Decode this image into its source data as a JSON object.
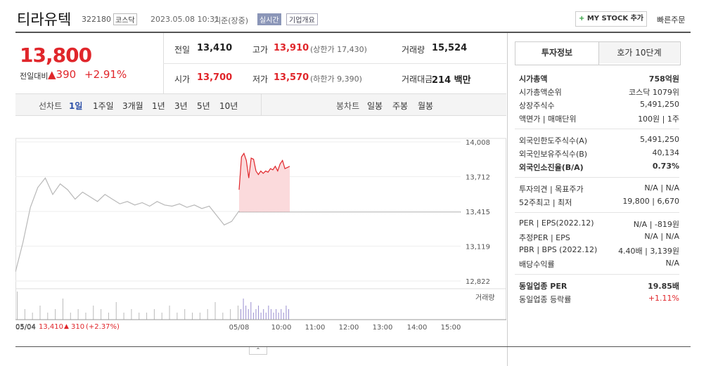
{
  "header": {
    "name": "티라유텍",
    "code": "322180",
    "market": "코스닥",
    "datetime": "2023.05.08 10:31",
    "basis": "기준(장중)",
    "realtime": "실시간",
    "company": "기업개요",
    "mystock": "MY STOCK 추가",
    "quick": "빠른주문"
  },
  "quote": {
    "price": "13,800",
    "change_label": "전일대비",
    "change": "390",
    "rate": "+2.91%"
  },
  "info": [
    {
      "label": "전일",
      "value": "13,410"
    },
    {
      "label": "고가",
      "value": "13,910",
      "note": "(상한가 17,430)"
    },
    {
      "label": "거래량",
      "value": "15,524"
    },
    {
      "label": "시가",
      "value": "13,700"
    },
    {
      "label": "저가",
      "value": "13,570",
      "note": "(하한가 9,390)"
    },
    {
      "label": "거래대금",
      "value": "214 백만"
    }
  ],
  "tabs": {
    "line_label": "선차트",
    "line_tabs": [
      "1일",
      "1주일",
      "3개월",
      "1년",
      "3년",
      "5년",
      "10년"
    ],
    "candle_label": "봉차트",
    "candle_tabs": [
      "일봉",
      "주봉",
      "월봉"
    ]
  },
  "chart": {
    "type": "line",
    "ylim": [
      12762,
      14038
    ],
    "yticks": [
      {
        "value": 14008,
        "label": "14,008"
      },
      {
        "value": 13712,
        "label": "13,712"
      },
      {
        "value": 13415,
        "label": "13,415"
      },
      {
        "value": 13119,
        "label": "13,119"
      },
      {
        "value": 12822,
        "label": "12,822"
      }
    ],
    "prev_close": 13410,
    "series": [
      {
        "color": "#b8b8b8",
        "values": [
          12900,
          13150,
          13450,
          13620,
          13700,
          13560,
          13650,
          13600,
          13520,
          13580,
          13540,
          13500,
          13560,
          13520,
          13480,
          13500,
          13470,
          13490,
          13460,
          13500,
          13470,
          13460,
          13480,
          13450,
          13470,
          13440,
          13460,
          13380,
          13300,
          13330,
          13420
        ]
      },
      {
        "color": "#e0262b",
        "fill": "#fbdadc",
        "values": [
          13600,
          13880,
          13910,
          13850,
          13700,
          13870,
          13860,
          13760,
          13730,
          13760,
          13740,
          13760,
          13750,
          13780,
          13770,
          13800,
          13760,
          13820,
          13850,
          13780,
          13790,
          13800
        ]
      }
    ],
    "volume_label": "거래량",
    "volume": [
      [
        8,
        3,
        2,
        4,
        2,
        3,
        6,
        2,
        3,
        2,
        4,
        3,
        2,
        5,
        2,
        3,
        2,
        2,
        3,
        2,
        4,
        2,
        3,
        2,
        2,
        3,
        5,
        2,
        3,
        4
      ],
      [
        3,
        6,
        4,
        3,
        5,
        2,
        3,
        4,
        2,
        3,
        2,
        4,
        3,
        2,
        3,
        2,
        3,
        2,
        4,
        3
      ]
    ],
    "x_labels": [
      "05/04",
      "05/08",
      "10:00",
      "11:00",
      "12:00",
      "13:00",
      "14:00",
      "15:00"
    ],
    "footer": {
      "date": "05/04",
      "price": "13,410",
      "change": "310",
      "rate": "(+2.37%)"
    }
  },
  "side": {
    "tabs": [
      "투자정보",
      "호가 10단계"
    ],
    "groups": [
      [
        {
          "label": "시가총액",
          "value": "758억원"
        },
        {
          "label": "시가총액순위",
          "value": "코스닥 1079위"
        },
        {
          "label": "상장주식수",
          "value": "5,491,250"
        },
        {
          "label": "액면가 | 매매단위",
          "value": "100원 | 1주"
        }
      ],
      [
        {
          "label": "외국인한도주식수(A)",
          "value": "5,491,250"
        },
        {
          "label": "외국인보유주식수(B)",
          "value": "40,134"
        },
        {
          "label": "외국인소진율(B/A)",
          "value": "0.73%"
        }
      ],
      [
        {
          "label": "투자의견 | 목표주가",
          "value": "N/A | N/A"
        },
        {
          "label": "52주최고 | 최저",
          "value": "19,800 | 6,670"
        }
      ],
      [
        {
          "label": "PER | EPS(2022.12)",
          "value": "N/A | -819원"
        },
        {
          "label": "추정PER | EPS",
          "value": "N/A | N/A"
        },
        {
          "label": "PBR | BPS (2022.12)",
          "value": "4.40배 | 3,139원"
        },
        {
          "label": "배당수익률",
          "value": "N/A"
        }
      ],
      [
        {
          "label": "동일업종 PER",
          "value": "19.85배"
        },
        {
          "label": "동일업종 등락률",
          "value": "+1.11%"
        }
      ]
    ]
  }
}
